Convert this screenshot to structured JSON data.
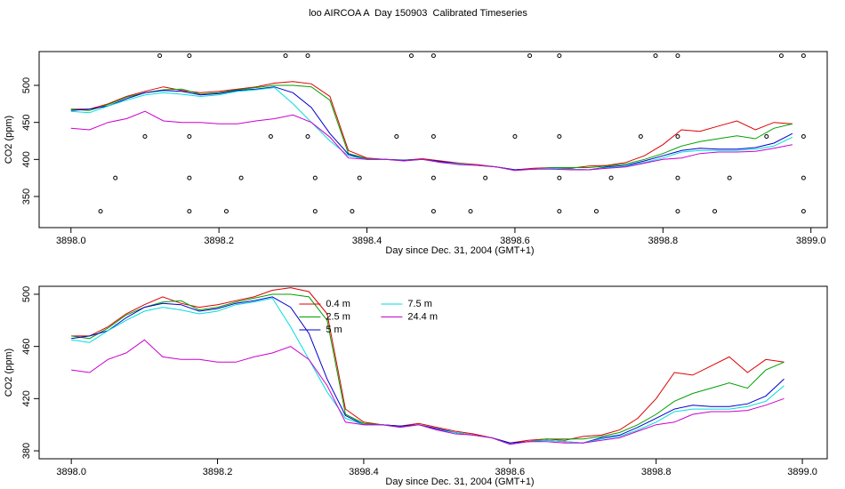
{
  "chart_data": [
    {
      "type": "line",
      "title": "loo AIRCOA A  Day 150903  Calibrated Timeseries",
      "x_label": "Day since Dec. 31, 2004 (GMT+1)",
      "y_label": "CO2 (ppm)",
      "xlim": [
        3897.957,
        3899.022
      ],
      "ylim": [
        308,
        545.6
      ],
      "xticks": [
        {
          "value": 3898,
          "label": "3898.0"
        },
        3898.2,
        3898.4,
        3898.6,
        3898.8,
        {
          "value": 3899,
          "label": "3899.0"
        }
      ],
      "yticks": [
        350,
        400,
        450,
        500
      ],
      "legend": false,
      "x": [
        3898,
        3898.025,
        3898.05,
        3898.075,
        3898.1,
        3898.125,
        3898.15,
        3898.175,
        3898.2,
        3898.225,
        3898.25,
        3898.275,
        3898.3,
        3898.325,
        3898.35,
        3898.375,
        3898.4,
        3898.425,
        3898.45,
        3898.475,
        3898.5,
        3898.525,
        3898.55,
        3898.575,
        3898.6,
        3898.625,
        3898.65,
        3898.675,
        3898.7,
        3898.725,
        3898.75,
        3898.775,
        3898.8,
        3898.825,
        3898.85,
        3898.875,
        3898.9,
        3898.925,
        3898.95,
        3898.975
      ],
      "series": [
        {
          "color": "#dd0000",
          "values": [
            468,
            468,
            475,
            485,
            492,
            498,
            493,
            490,
            492,
            495,
            498,
            503,
            505,
            502,
            485,
            412,
            402,
            400,
            399,
            401,
            398,
            395,
            393,
            390,
            386,
            388,
            389,
            388,
            391,
            392,
            396,
            405,
            420,
            440,
            438,
            445,
            452,
            440,
            450,
            448
          ]
        },
        {
          "color": "#00a000",
          "values": [
            468,
            466,
            474,
            484,
            490,
            494,
            495,
            488,
            490,
            494,
            497,
            500,
            500,
            498,
            480,
            408,
            401,
            400,
            399,
            400,
            397,
            394,
            392,
            390,
            386,
            387,
            389,
            389,
            389,
            391,
            394,
            400,
            408,
            418,
            424,
            428,
            432,
            428,
            442,
            448
          ]
        },
        {
          "color": "#0000cc",
          "values": [
            466,
            468,
            472,
            482,
            490,
            493,
            492,
            487,
            489,
            493,
            495,
            498,
            490,
            470,
            435,
            407,
            400,
            400,
            399,
            400,
            397,
            394,
            392,
            390,
            386,
            387,
            388,
            387,
            386,
            390,
            392,
            398,
            405,
            412,
            415,
            414,
            414,
            416,
            422,
            435
          ]
        },
        {
          "color": "#00dddd",
          "values": [
            465,
            463,
            472,
            480,
            487,
            490,
            488,
            485,
            487,
            492,
            494,
            497,
            475,
            450,
            425,
            405,
            400,
            400,
            398,
            400,
            396,
            394,
            392,
            390,
            385,
            387,
            388,
            387,
            386,
            389,
            391,
            396,
            402,
            410,
            412,
            412,
            412,
            414,
            418,
            430
          ]
        },
        {
          "color": "#cc00cc",
          "values": [
            442,
            440,
            450,
            455,
            465,
            452,
            450,
            450,
            448,
            448,
            452,
            455,
            460,
            450,
            430,
            402,
            400,
            400,
            398,
            400,
            396,
            393,
            392,
            390,
            385,
            387,
            387,
            386,
            386,
            388,
            390,
            395,
            400,
            402,
            408,
            410,
            410,
            411,
            415,
            420
          ]
        }
      ],
      "flags": {
        "x": [
          3898.12,
          3898.16,
          3898.29,
          3898.32,
          3898.46,
          3898.49,
          3898.62,
          3898.66,
          3898.79,
          3898.82,
          3898.96,
          3898.99,
          3898.1,
          3898.16,
          3898.27,
          3898.32,
          3898.44,
          3898.49,
          3898.6,
          3898.66,
          3898.77,
          3898.82,
          3898.94,
          3898.99,
          3898.06,
          3898.16,
          3898.23,
          3898.33,
          3898.39,
          3898.49,
          3898.56,
          3898.66,
          3898.73,
          3898.82,
          3898.89,
          3898.99,
          3898.04,
          3898.16,
          3898.21,
          3898.33,
          3898.38,
          3898.49,
          3898.54,
          3898.66,
          3898.71,
          3898.82,
          3898.87,
          3898.99
        ],
        "y": [
          540,
          540,
          540,
          540,
          540,
          540,
          540,
          540,
          540,
          540,
          540,
          540,
          431,
          431,
          431,
          431,
          431,
          431,
          431,
          431,
          431,
          431,
          431,
          431,
          375,
          375,
          375,
          375,
          375,
          375,
          375,
          375,
          375,
          375,
          375,
          375,
          330,
          330,
          330,
          330,
          330,
          330,
          330,
          330,
          330,
          330,
          330,
          330
        ]
      }
    },
    {
      "type": "line",
      "x_label": "Day since Dec. 31, 2004 (GMT+1)",
      "y_label": "CO2 (ppm)",
      "xlim": [
        3897.956,
        3899.034
      ],
      "ylim": [
        373.9,
        506.1
      ],
      "xticks": [
        {
          "value": 3898,
          "label": "3898.0"
        },
        3898.2,
        3898.4,
        3898.6,
        3898.8,
        {
          "value": 3899,
          "label": "3899.0"
        }
      ],
      "yticks": [
        380,
        420,
        460,
        500
      ],
      "legend": "top",
      "x": [
        3898,
        3898.025,
        3898.05,
        3898.075,
        3898.1,
        3898.125,
        3898.15,
        3898.175,
        3898.2,
        3898.225,
        3898.25,
        3898.275,
        3898.3,
        3898.325,
        3898.35,
        3898.375,
        3898.4,
        3898.425,
        3898.45,
        3898.475,
        3898.5,
        3898.525,
        3898.55,
        3898.575,
        3898.6,
        3898.625,
        3898.65,
        3898.675,
        3898.7,
        3898.725,
        3898.75,
        3898.775,
        3898.8,
        3898.825,
        3898.85,
        3898.875,
        3898.9,
        3898.925,
        3898.95,
        3898.975
      ],
      "series": [
        {
          "name": "0.4 m",
          "color": "#dd0000",
          "values": [
            468,
            468,
            475,
            485,
            492,
            498,
            493,
            490,
            492,
            495,
            498,
            503,
            505,
            502,
            485,
            412,
            402,
            400,
            399,
            401,
            398,
            395,
            393,
            390,
            386,
            388,
            389,
            388,
            391,
            392,
            396,
            405,
            420,
            440,
            438,
            445,
            452,
            440,
            450,
            448
          ]
        },
        {
          "name": "2.5 m",
          "color": "#00a000",
          "values": [
            468,
            466,
            474,
            484,
            490,
            494,
            495,
            488,
            490,
            494,
            497,
            500,
            500,
            498,
            480,
            408,
            401,
            400,
            399,
            400,
            397,
            394,
            392,
            390,
            386,
            387,
            389,
            389,
            389,
            391,
            394,
            400,
            408,
            418,
            424,
            428,
            432,
            428,
            442,
            448
          ]
        },
        {
          "name": "5 m",
          "color": "#0000cc",
          "values": [
            466,
            468,
            472,
            482,
            490,
            493,
            492,
            487,
            489,
            493,
            495,
            498,
            490,
            470,
            435,
            407,
            400,
            400,
            399,
            400,
            397,
            394,
            392,
            390,
            386,
            387,
            388,
            387,
            386,
            390,
            392,
            398,
            405,
            412,
            415,
            414,
            414,
            416,
            422,
            435
          ]
        },
        {
          "name": "7.5 m",
          "color": "#00dddd",
          "values": [
            465,
            463,
            472,
            480,
            487,
            490,
            488,
            485,
            487,
            492,
            494,
            497,
            475,
            450,
            425,
            405,
            400,
            400,
            398,
            400,
            396,
            394,
            392,
            390,
            385,
            387,
            388,
            387,
            386,
            389,
            391,
            396,
            402,
            410,
            412,
            412,
            412,
            414,
            418,
            430
          ]
        },
        {
          "name": "24.4 m",
          "color": "#cc00cc",
          "values": [
            442,
            440,
            450,
            455,
            465,
            452,
            450,
            450,
            448,
            448,
            452,
            455,
            460,
            450,
            430,
            402,
            400,
            400,
            398,
            400,
            396,
            393,
            392,
            390,
            385,
            387,
            387,
            386,
            386,
            388,
            390,
            395,
            400,
            402,
            408,
            410,
            410,
            411,
            415,
            420
          ]
        }
      ]
    }
  ]
}
